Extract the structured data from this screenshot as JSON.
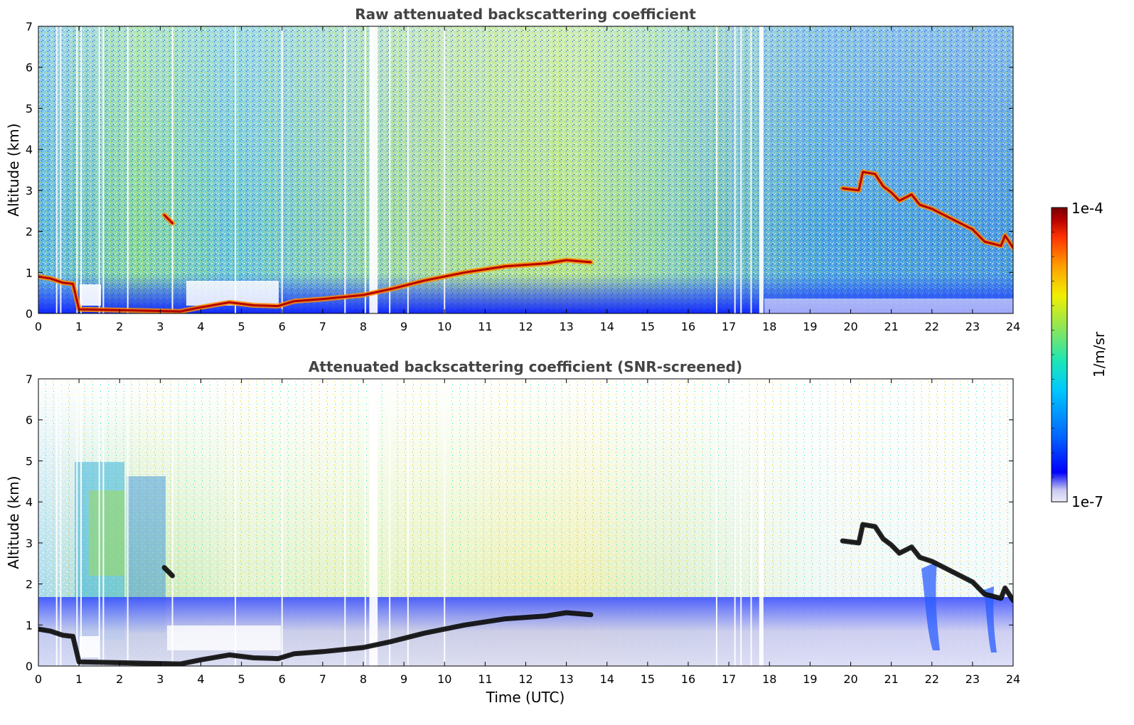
{
  "chart_data": [
    {
      "type": "heatmap",
      "title": "Raw attenuated backscattering coefficient",
      "xlabel": "",
      "ylabel": "Altitude (km)",
      "xlim": [
        0,
        24
      ],
      "ylim": [
        0,
        7
      ],
      "x_ticks": [
        0,
        1,
        2,
        3,
        4,
        5,
        6,
        7,
        8,
        9,
        10,
        11,
        12,
        13,
        14,
        15,
        16,
        17,
        18,
        19,
        20,
        21,
        22,
        23,
        24
      ],
      "y_ticks": [
        0,
        1,
        2,
        3,
        4,
        5,
        6,
        7
      ],
      "layers": [
        {
          "name": "low_layer",
          "points": [
            [
              0.0,
              0.9
            ],
            [
              0.3,
              0.85
            ],
            [
              0.6,
              0.75
            ],
            [
              0.85,
              0.72
            ],
            [
              1.0,
              0.1
            ],
            [
              2.0,
              0.08
            ],
            [
              3.5,
              0.05
            ],
            [
              4.0,
              0.15
            ],
            [
              4.7,
              0.27
            ],
            [
              5.3,
              0.2
            ],
            [
              5.9,
              0.18
            ],
            [
              6.3,
              0.3
            ],
            [
              7.0,
              0.35
            ],
            [
              8.0,
              0.45
            ],
            [
              8.7,
              0.6
            ],
            [
              9.5,
              0.8
            ],
            [
              10.5,
              1.0
            ],
            [
              11.5,
              1.15
            ],
            [
              12.5,
              1.22
            ],
            [
              13.0,
              1.3
            ],
            [
              13.6,
              1.25
            ]
          ]
        },
        {
          "name": "cloud_a",
          "points": [
            [
              3.1,
              2.4
            ],
            [
              3.3,
              2.2
            ]
          ]
        },
        {
          "name": "cloud_b",
          "points": [
            [
              19.8,
              3.05
            ],
            [
              20.2,
              3.0
            ],
            [
              20.3,
              3.45
            ],
            [
              20.6,
              3.4
            ],
            [
              20.8,
              3.1
            ],
            [
              21.0,
              2.95
            ],
            [
              21.2,
              2.75
            ],
            [
              21.5,
              2.9
            ],
            [
              21.7,
              2.65
            ],
            [
              22.0,
              2.55
            ],
            [
              22.5,
              2.3
            ],
            [
              23.0,
              2.05
            ],
            [
              23.3,
              1.75
            ],
            [
              23.7,
              1.65
            ],
            [
              23.8,
              1.9
            ],
            [
              24.0,
              1.6
            ]
          ]
        }
      ]
    },
    {
      "type": "heatmap",
      "title": "Attenuated backscattering coefficient (SNR-screened)",
      "xlabel": "Time (UTC)",
      "ylabel": "Altitude (km)",
      "xlim": [
        0,
        24
      ],
      "ylim": [
        0,
        7
      ],
      "x_ticks": [
        0,
        1,
        2,
        3,
        4,
        5,
        6,
        7,
        8,
        9,
        10,
        11,
        12,
        13,
        14,
        15,
        16,
        17,
        18,
        19,
        20,
        21,
        22,
        23,
        24
      ],
      "y_ticks": [
        0,
        1,
        2,
        3,
        4,
        5,
        6,
        7
      ],
      "layers": [
        {
          "name": "low_layer",
          "points": [
            [
              0.0,
              0.9
            ],
            [
              0.3,
              0.85
            ],
            [
              0.6,
              0.75
            ],
            [
              0.85,
              0.72
            ],
            [
              1.0,
              0.1
            ],
            [
              2.0,
              0.08
            ],
            [
              3.5,
              0.05
            ],
            [
              4.0,
              0.15
            ],
            [
              4.7,
              0.27
            ],
            [
              5.3,
              0.2
            ],
            [
              5.9,
              0.18
            ],
            [
              6.3,
              0.3
            ],
            [
              7.0,
              0.35
            ],
            [
              8.0,
              0.45
            ],
            [
              8.7,
              0.6
            ],
            [
              9.5,
              0.8
            ],
            [
              10.5,
              1.0
            ],
            [
              11.5,
              1.15
            ],
            [
              12.5,
              1.22
            ],
            [
              13.0,
              1.3
            ],
            [
              13.6,
              1.25
            ]
          ]
        },
        {
          "name": "cloud_a",
          "points": [
            [
              3.1,
              2.4
            ],
            [
              3.3,
              2.2
            ]
          ]
        },
        {
          "name": "cloud_b",
          "points": [
            [
              19.8,
              3.05
            ],
            [
              20.2,
              3.0
            ],
            [
              20.3,
              3.45
            ],
            [
              20.6,
              3.4
            ],
            [
              20.8,
              3.1
            ],
            [
              21.0,
              2.95
            ],
            [
              21.2,
              2.75
            ],
            [
              21.5,
              2.9
            ],
            [
              21.7,
              2.65
            ],
            [
              22.0,
              2.55
            ],
            [
              22.5,
              2.3
            ],
            [
              23.0,
              2.05
            ],
            [
              23.3,
              1.75
            ],
            [
              23.7,
              1.65
            ],
            [
              23.8,
              1.9
            ],
            [
              24.0,
              1.6
            ]
          ]
        }
      ]
    }
  ],
  "colorbar": {
    "label": "1/m/sr",
    "max_label": "1e-4",
    "min_label": "1e-7",
    "scale": "log",
    "colors": [
      "#ececfa",
      "#c8c8f0",
      "#0000ff",
      "#0064ff",
      "#00c8ff",
      "#1ee6b4",
      "#96e650",
      "#f0f000",
      "#ffa000",
      "#ff3200",
      "#b40000",
      "#780000"
    ]
  }
}
